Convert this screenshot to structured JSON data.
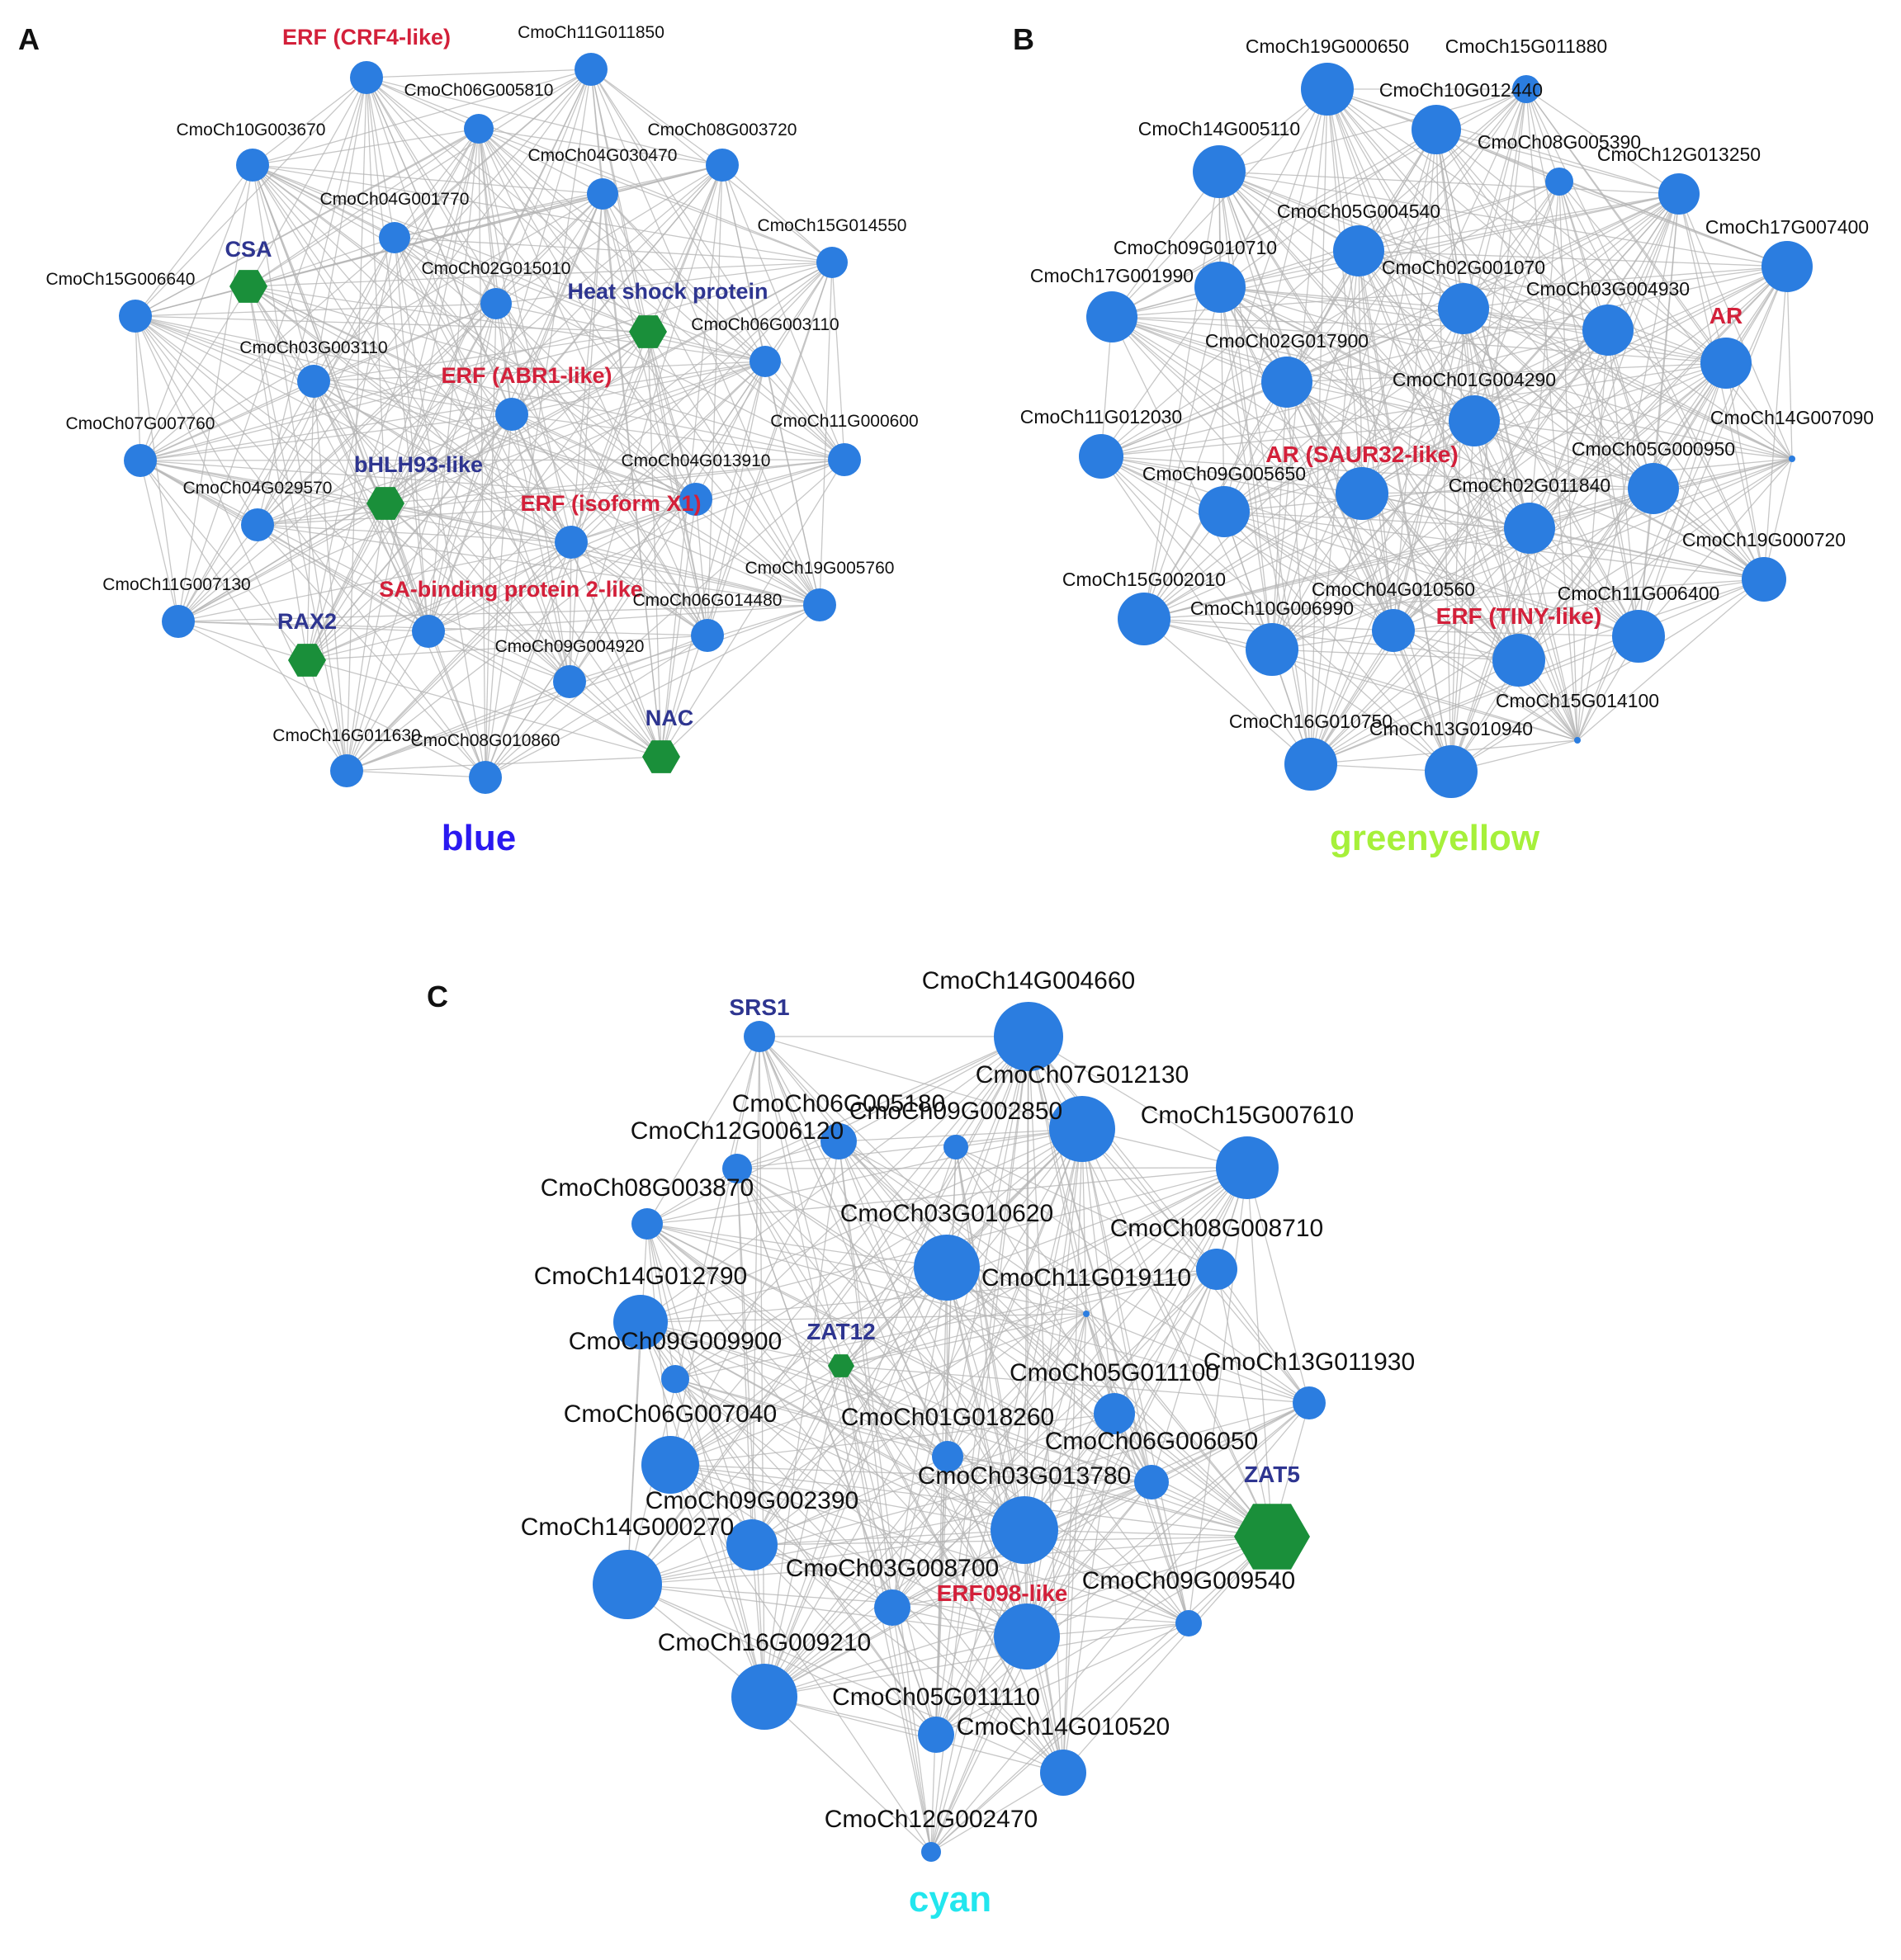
{
  "colors": {
    "node": "#2b7de0",
    "hub": "#1a8f3a",
    "edge": "#b4b4b4",
    "label": "#111111",
    "red_label": "#d3203a",
    "blue_label": "#2e3590",
    "module_blue": "#2a19f0",
    "module_greenyellow": "#a6f03a",
    "module_cyan": "#22e6ee"
  },
  "panels": [
    {
      "id": "A",
      "letter": "A",
      "module_name": "blue",
      "nodes": [
        {
          "id": "g1",
          "label": "ERF (CRF4-like)",
          "label_class": "red",
          "shape": "circle",
          "size": 40
        },
        {
          "id": "g2",
          "label": "CmoCh11G011850",
          "shape": "circle",
          "size": 40
        },
        {
          "id": "g3",
          "label": "CmoCh06G005810",
          "shape": "circle",
          "size": 36
        },
        {
          "id": "g4",
          "label": "CmoCh10G003670",
          "shape": "circle",
          "size": 40
        },
        {
          "id": "g5",
          "label": "CmoCh08G003720",
          "shape": "circle",
          "size": 40
        },
        {
          "id": "g6",
          "label": "CmoCh04G030470",
          "shape": "circle",
          "size": 38
        },
        {
          "id": "g7",
          "label": "CmoCh04G001770",
          "shape": "circle",
          "size": 38
        },
        {
          "id": "g8",
          "label": "CmoCh15G014550",
          "shape": "circle",
          "size": 38
        },
        {
          "id": "g9",
          "label": "CSA",
          "label_class": "blue",
          "shape": "hex",
          "size": 46
        },
        {
          "id": "g10",
          "label": "CmoCh15G006640",
          "shape": "circle",
          "size": 40
        },
        {
          "id": "g11",
          "label": "CmoCh02G015010",
          "shape": "circle",
          "size": 38
        },
        {
          "id": "g12",
          "label": "Heat shock protein",
          "label_class": "blue",
          "shape": "hex",
          "size": 46
        },
        {
          "id": "g13",
          "label": "CmoCh06G003110",
          "shape": "circle",
          "size": 38
        },
        {
          "id": "g14",
          "label": "CmoCh03G003110",
          "shape": "circle",
          "size": 40
        },
        {
          "id": "g15",
          "label": "ERF (ABR1-like)",
          "label_class": "red",
          "shape": "circle",
          "size": 40
        },
        {
          "id": "g16",
          "label": "CmoCh07G007760",
          "shape": "circle",
          "size": 40
        },
        {
          "id": "g17",
          "label": "CmoCh11G000600",
          "shape": "circle",
          "size": 40
        },
        {
          "id": "g18",
          "label": "bHLH93-like",
          "label_class": "blue",
          "shape": "hex",
          "size": 46
        },
        {
          "id": "g19",
          "label": "CmoCh04G029570",
          "shape": "circle",
          "size": 40
        },
        {
          "id": "g20",
          "label": "ERF (isoform X1)",
          "label_class": "red",
          "shape": "circle",
          "size": 40
        },
        {
          "id": "g21",
          "label": "CmoCh04G013910",
          "shape": "circle",
          "size": 40
        },
        {
          "id": "g22",
          "label": "CmoCh11G007130",
          "shape": "circle",
          "size": 40
        },
        {
          "id": "g23",
          "label": "SA-binding protein 2-like",
          "label_class": "red",
          "shape": "circle",
          "size": 40
        },
        {
          "id": "g24",
          "label": "CmoCh06G014480",
          "shape": "circle",
          "size": 40
        },
        {
          "id": "g25",
          "label": "CmoCh19G005760",
          "shape": "circle",
          "size": 40
        },
        {
          "id": "g26",
          "label": "RAX2",
          "label_class": "blue",
          "shape": "hex",
          "size": 46
        },
        {
          "id": "g27",
          "label": "CmoCh09G004920",
          "shape": "circle",
          "size": 40
        },
        {
          "id": "g28",
          "label": "NAC",
          "label_class": "blue",
          "shape": "hex",
          "size": 46
        },
        {
          "id": "g29",
          "label": "CmoCh16G011630",
          "shape": "circle",
          "size": 40
        },
        {
          "id": "g30",
          "label": "CmoCh08G010860",
          "shape": "circle",
          "size": 40
        }
      ]
    },
    {
      "id": "B",
      "letter": "B",
      "module_name": "greenyellow",
      "nodes": [
        {
          "id": "b1",
          "label": "CmoCh19G000650",
          "shape": "circle",
          "size": 64
        },
        {
          "id": "b2",
          "label": "CmoCh15G011880",
          "shape": "circle",
          "size": 34
        },
        {
          "id": "b3",
          "label": "CmoCh10G012440",
          "shape": "circle",
          "size": 60
        },
        {
          "id": "b4",
          "label": "CmoCh14G005110",
          "shape": "circle",
          "size": 64
        },
        {
          "id": "b5",
          "label": "CmoCh08G005390",
          "shape": "circle",
          "size": 34
        },
        {
          "id": "b6",
          "label": "CmoCh12G013250",
          "shape": "circle",
          "size": 50
        },
        {
          "id": "b7",
          "label": "CmoCh05G004540",
          "shape": "circle",
          "size": 62
        },
        {
          "id": "b8",
          "label": "CmoCh17G007400",
          "shape": "circle",
          "size": 62
        },
        {
          "id": "b9",
          "label": "CmoCh09G010710",
          "shape": "circle",
          "size": 62
        },
        {
          "id": "b10",
          "label": "CmoCh17G001990",
          "shape": "circle",
          "size": 62
        },
        {
          "id": "b11",
          "label": "CmoCh02G001070",
          "shape": "circle",
          "size": 62
        },
        {
          "id": "b12",
          "label": "CmoCh03G004930",
          "shape": "circle",
          "size": 62
        },
        {
          "id": "b13",
          "label": "AR",
          "label_class": "red",
          "shape": "circle",
          "size": 62
        },
        {
          "id": "b14",
          "label": "CmoCh02G017900",
          "shape": "circle",
          "size": 62
        },
        {
          "id": "b15",
          "label": "CmoCh01G004290",
          "shape": "circle",
          "size": 62
        },
        {
          "id": "b16",
          "label": "CmoCh11G012030",
          "shape": "circle",
          "size": 54
        },
        {
          "id": "b17",
          "label": "CmoCh14G007090",
          "shape": "circle",
          "size": 8
        },
        {
          "id": "b18",
          "label": "AR (SAUR32-like)",
          "label_class": "red",
          "shape": "circle",
          "size": 64
        },
        {
          "id": "b19",
          "label": "CmoCh05G000950",
          "shape": "circle",
          "size": 62
        },
        {
          "id": "b20",
          "label": "CmoCh09G005650",
          "shape": "circle",
          "size": 62
        },
        {
          "id": "b21",
          "label": "CmoCh02G011840",
          "shape": "circle",
          "size": 62
        },
        {
          "id": "b22",
          "label": "CmoCh19G000720",
          "shape": "circle",
          "size": 54
        },
        {
          "id": "b23",
          "label": "CmoCh15G002010",
          "shape": "circle",
          "size": 64
        },
        {
          "id": "b24",
          "label": "CmoCh04G010560",
          "shape": "circle",
          "size": 52
        },
        {
          "id": "b25",
          "label": "CmoCh10G006990",
          "shape": "circle",
          "size": 64
        },
        {
          "id": "b26",
          "label": "CmoCh11G006400",
          "shape": "circle",
          "size": 64
        },
        {
          "id": "b27",
          "label": "ERF (TINY-like)",
          "label_class": "red",
          "shape": "circle",
          "size": 64
        },
        {
          "id": "b28",
          "label": "CmoCh15G014100",
          "shape": "circle",
          "size": 8
        },
        {
          "id": "b29",
          "label": "CmoCh16G010750",
          "shape": "circle",
          "size": 64
        },
        {
          "id": "b30",
          "label": "CmoCh13G010940",
          "shape": "circle",
          "size": 64
        }
      ]
    },
    {
      "id": "C",
      "letter": "C",
      "module_name": "cyan",
      "nodes": [
        {
          "id": "c1",
          "label": "SRS1",
          "label_class": "blue",
          "shape": "circle",
          "size": 38
        },
        {
          "id": "c2",
          "label": "CmoCh14G004660",
          "shape": "circle",
          "size": 84
        },
        {
          "id": "c3",
          "label": "CmoCh07G012130",
          "shape": "circle",
          "size": 80
        },
        {
          "id": "c4",
          "label": "CmoCh06G005180",
          "shape": "circle",
          "size": 44
        },
        {
          "id": "c5",
          "label": "CmoCh09G002850",
          "shape": "circle",
          "size": 30
        },
        {
          "id": "c6",
          "label": "CmoCh15G007610",
          "shape": "circle",
          "size": 76
        },
        {
          "id": "c7",
          "label": "CmoCh12G006120",
          "shape": "circle",
          "size": 36
        },
        {
          "id": "c8",
          "label": "CmoCh08G003870",
          "shape": "circle",
          "size": 38
        },
        {
          "id": "c9",
          "label": "CmoCh03G010620",
          "shape": "circle",
          "size": 80
        },
        {
          "id": "c10",
          "label": "CmoCh08G008710",
          "shape": "circle",
          "size": 50
        },
        {
          "id": "c11",
          "label": "CmoCh14G012790",
          "shape": "circle",
          "size": 66
        },
        {
          "id": "c12",
          "label": "CmoCh11G019110",
          "shape": "circle",
          "size": 8
        },
        {
          "id": "c13",
          "label": "ZAT12",
          "label_class": "blue",
          "shape": "hex",
          "size": 32
        },
        {
          "id": "c14",
          "label": "CmoCh09G009900",
          "shape": "circle",
          "size": 34
        },
        {
          "id": "c15",
          "label": "CmoCh13G011930",
          "shape": "circle",
          "size": 40
        },
        {
          "id": "c16",
          "label": "CmoCh05G011100",
          "shape": "circle",
          "size": 50
        },
        {
          "id": "c17",
          "label": "CmoCh06G007040",
          "shape": "circle",
          "size": 70
        },
        {
          "id": "c18",
          "label": "CmoCh01G018260",
          "shape": "circle",
          "size": 38
        },
        {
          "id": "c19",
          "label": "CmoCh06G006050",
          "shape": "circle",
          "size": 42
        },
        {
          "id": "c20",
          "label": "CmoCh03G013780",
          "shape": "circle",
          "size": 82
        },
        {
          "id": "c21",
          "label": "ZAT5",
          "label_class": "blue",
          "shape": "hex",
          "size": 92
        },
        {
          "id": "c22",
          "label": "CmoCh09G002390",
          "shape": "circle",
          "size": 62
        },
        {
          "id": "c23",
          "label": "CmoCh14G000270",
          "shape": "circle",
          "size": 84
        },
        {
          "id": "c24",
          "label": "CmoCh03G008700",
          "shape": "circle",
          "size": 44
        },
        {
          "id": "c25",
          "label": "ERF098-like",
          "label_class": "red",
          "shape": "circle",
          "size": 80
        },
        {
          "id": "c26",
          "label": "CmoCh09G009540",
          "shape": "circle",
          "size": 32
        },
        {
          "id": "c27",
          "label": "CmoCh16G009210",
          "shape": "circle",
          "size": 80
        },
        {
          "id": "c28",
          "label": "CmoCh05G011110",
          "shape": "circle",
          "size": 44
        },
        {
          "id": "c29",
          "label": "CmoCh14G010520",
          "shape": "circle",
          "size": 56
        },
        {
          "id": "c30",
          "label": "CmoCh12G002470",
          "shape": "circle",
          "size": 24
        }
      ]
    }
  ]
}
